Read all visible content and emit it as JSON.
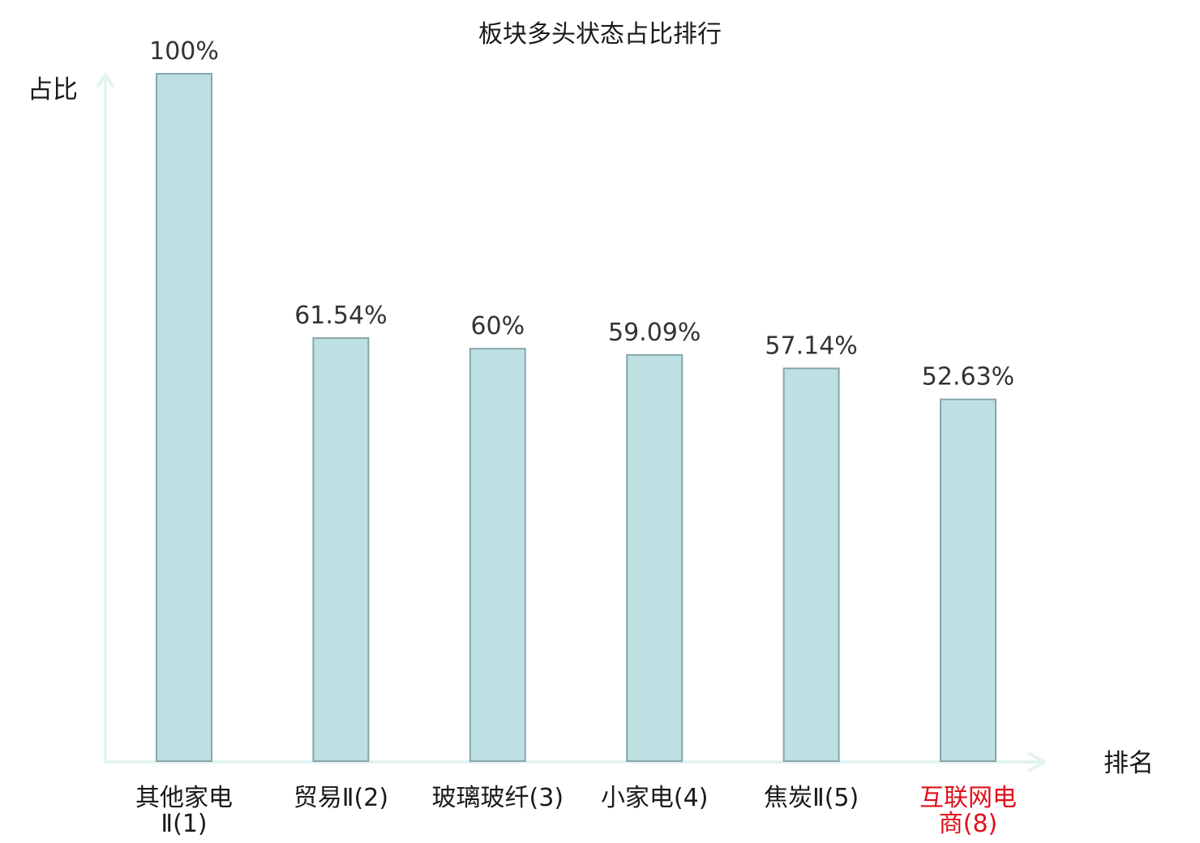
{
  "chart_data": {
    "type": "bar",
    "title": "板块多头状态占比排行",
    "ylabel": "占比",
    "xlabel": "排名",
    "ylim": [
      0,
      100
    ],
    "grid": false,
    "legend": "none",
    "categories": [
      [
        "其他家电",
        "Ⅱ(1)"
      ],
      [
        "贸易Ⅱ(2)"
      ],
      [
        "玻璃玻纤(3)"
      ],
      [
        "小家电(4)"
      ],
      [
        "焦炭Ⅱ(5)"
      ],
      [
        "互联网电",
        "商(8)"
      ]
    ],
    "values": [
      100,
      61.54,
      60,
      59.09,
      57.14,
      52.63
    ],
    "value_labels": [
      "100%",
      "61.54%",
      "60%",
      "59.09%",
      "57.14%",
      "52.63%"
    ],
    "highlight_index": 5,
    "colors": {
      "bar_fill": "#bde0e3",
      "bar_stroke": "#86a6aa",
      "axis": "#e3f3f1",
      "highlight_label": "#e0101a"
    }
  }
}
